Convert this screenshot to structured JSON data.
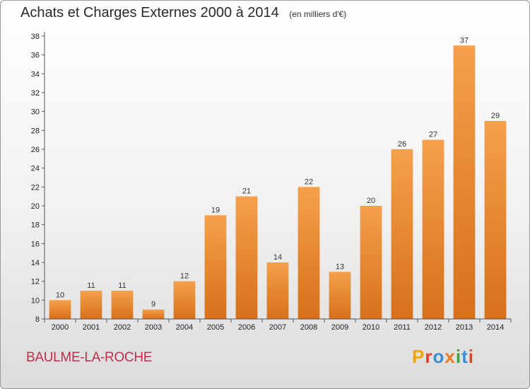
{
  "header": {
    "title": "Achats et Charges Externes 2000 à 2014",
    "subtitle": "(en milliers d'€)"
  },
  "footer": {
    "commune": "BAULME-LA-ROCHE",
    "logo": [
      "P",
      "r",
      "o",
      "x",
      "i",
      "t",
      "i"
    ],
    "logo_colors": [
      "#f0a500",
      "#e0402a",
      "#3b8fd0",
      "#f07818",
      "#40a040",
      "#3b8fd0",
      "#e0402a"
    ]
  },
  "chart_data": {
    "type": "bar",
    "title": "Achats et Charges Externes 2000 à 2014",
    "subtitle": "(en milliers d'€)",
    "categories": [
      "2000",
      "2001",
      "2002",
      "2003",
      "2004",
      "2005",
      "2006",
      "2007",
      "2008",
      "2009",
      "2010",
      "2011",
      "2012",
      "2013",
      "2014"
    ],
    "values": [
      10,
      11,
      11,
      9,
      12,
      19,
      21,
      14,
      22,
      13,
      20,
      26,
      27,
      37,
      29
    ],
    "ylim": [
      8,
      38
    ],
    "yticks": [
      8,
      10,
      12,
      14,
      16,
      18,
      20,
      22,
      24,
      26,
      28,
      30,
      32,
      34,
      36,
      38
    ],
    "grid": false,
    "bar_color_top": "#f5a04a",
    "bar_color_bottom": "#d8701a"
  }
}
